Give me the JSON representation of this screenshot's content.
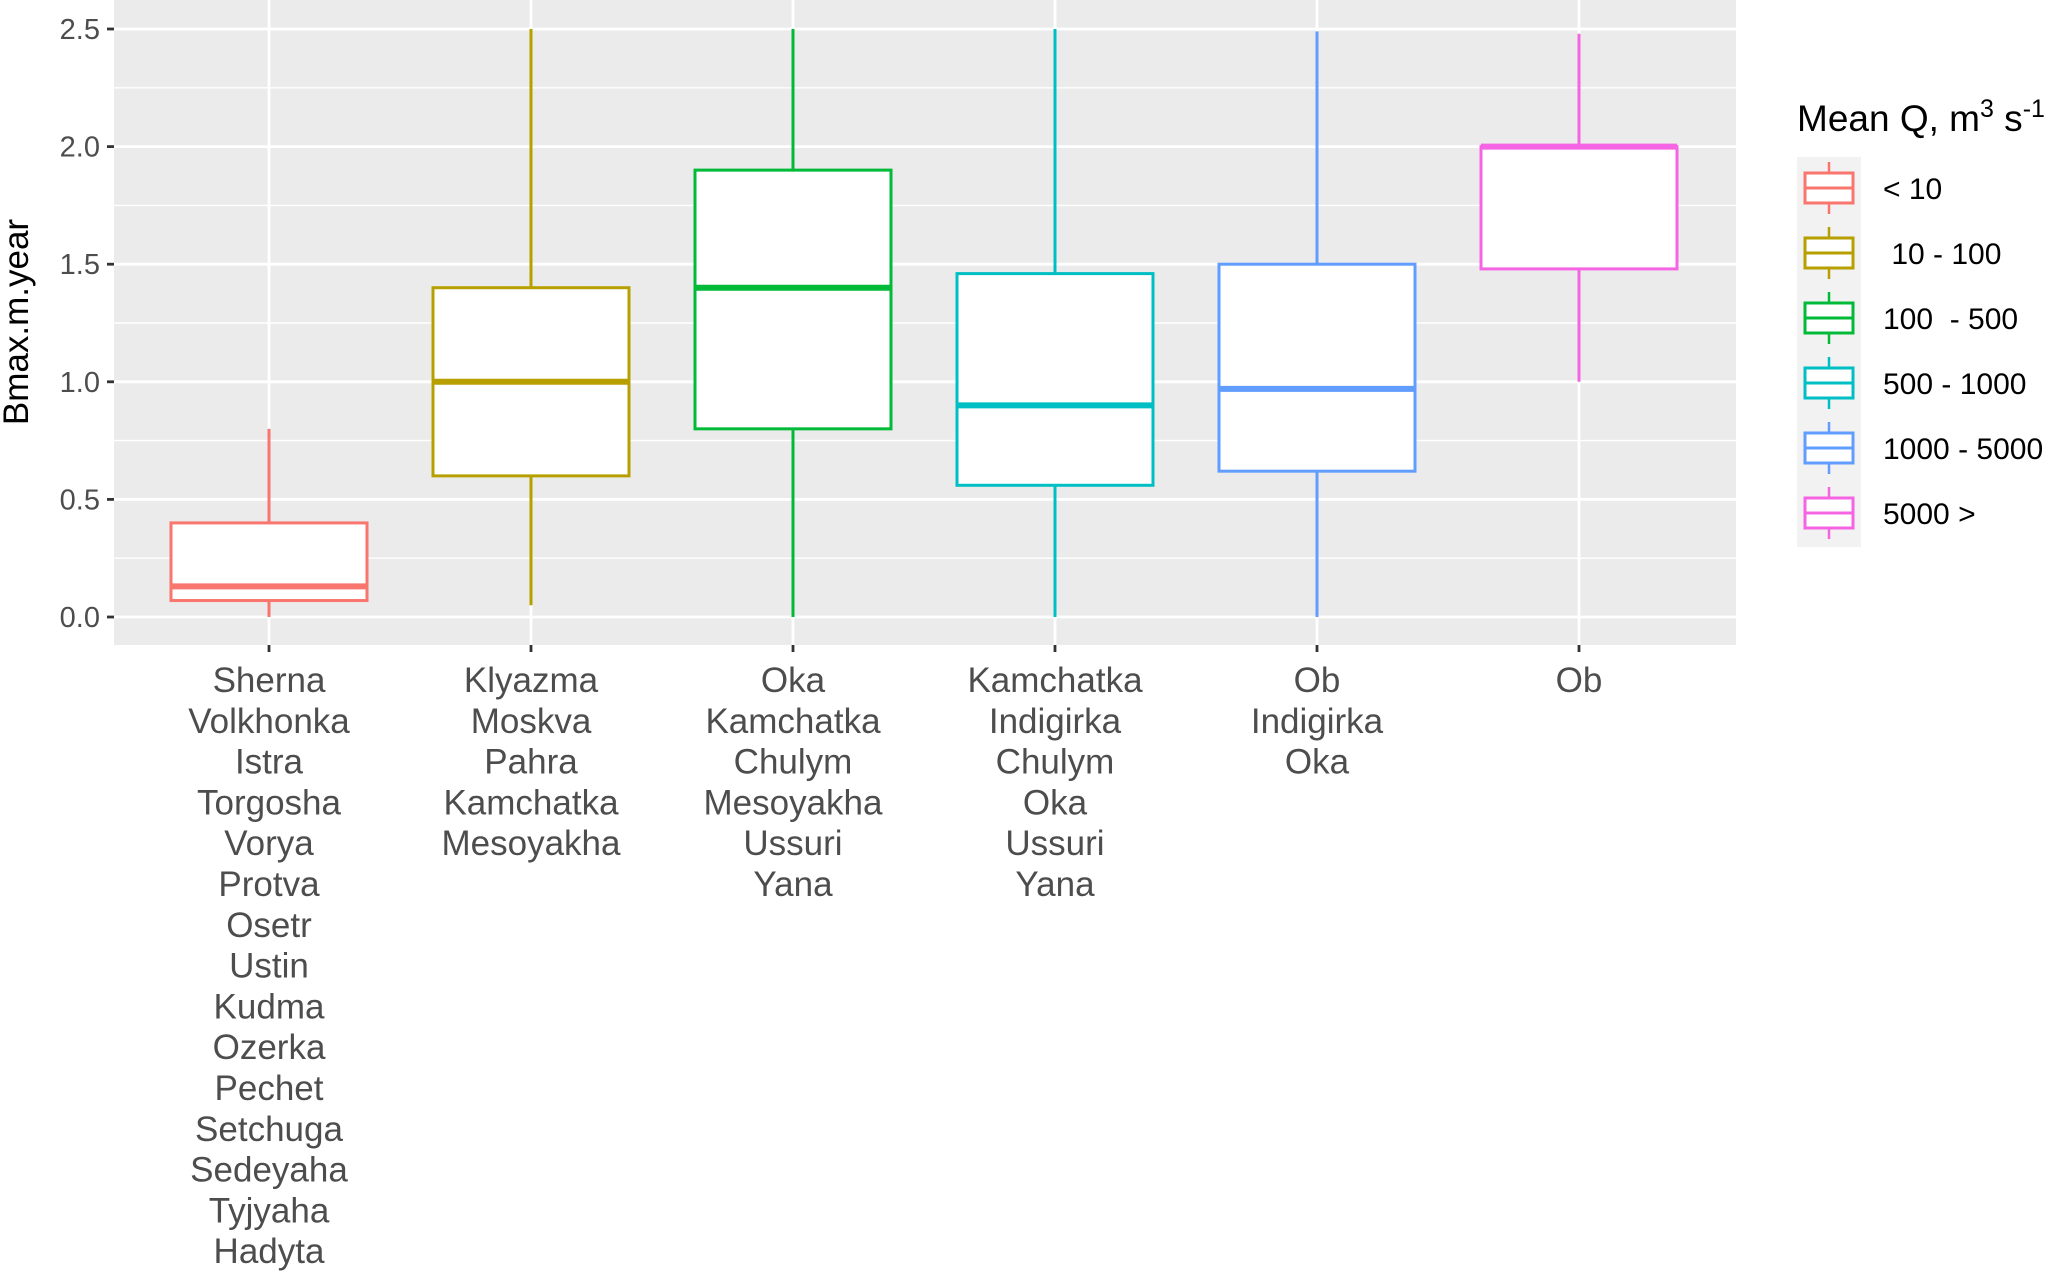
{
  "chart_data": {
    "type": "boxplot",
    "ylabel": "Bmax.m.year",
    "ylim": [
      0,
      2.5
    ],
    "yticks": [
      "0.0",
      "0.5",
      "1.0",
      "1.5",
      "2.0",
      "2.5"
    ],
    "ytick_values": [
      0,
      0.5,
      1.0,
      1.5,
      2.0,
      2.5
    ],
    "grid": true,
    "legend": {
      "title_main": "Mean Q, m",
      "title_sup1": "3",
      "title_mid": " s",
      "title_sup2": "-1",
      "position": "right"
    },
    "series": [
      {
        "name": "< 10",
        "color": "#F8766D",
        "whisker_low": 0.0,
        "q1": 0.07,
        "median": 0.13,
        "q3": 0.4,
        "whisker_high": 0.8,
        "label_lines": [
          "Sherna",
          "Volkhonka",
          "Istra",
          "Torgosha",
          "Vorya",
          "Protva",
          "Osetr",
          "Ustin",
          "Kudma",
          "Ozerka",
          "Pechet",
          "Setchuga",
          "Sedeyaha",
          "Tyjyaha",
          "Hadyta"
        ]
      },
      {
        "name": " 10 - 100",
        "color": "#B79F00",
        "whisker_low": 0.05,
        "q1": 0.6,
        "median": 1.0,
        "q3": 1.4,
        "whisker_high": 2.5,
        "label_lines": [
          "Klyazma",
          "Moskva",
          "Pahra",
          "Kamchatka",
          "Mesoyakha"
        ]
      },
      {
        "name": "100  - 500",
        "color": "#00BA38",
        "whisker_low": 0.0,
        "q1": 0.8,
        "median": 1.4,
        "q3": 1.9,
        "whisker_high": 2.5,
        "label_lines": [
          "Oka",
          "Kamchatka",
          "Chulym",
          "Mesoyakha",
          "Ussuri",
          "Yana"
        ]
      },
      {
        "name": "500 - 1000",
        "color": "#00BFC4",
        "whisker_low": 0.0,
        "q1": 0.56,
        "median": 0.9,
        "q3": 1.46,
        "whisker_high": 2.5,
        "label_lines": [
          "Kamchatka",
          "Indigirka",
          "Chulym",
          "Oka",
          "Ussuri",
          "Yana"
        ]
      },
      {
        "name": "1000 - 5000",
        "color": "#619CFF",
        "whisker_low": 0.0,
        "q1": 0.62,
        "median": 0.97,
        "q3": 1.5,
        "whisker_high": 2.49,
        "label_lines": [
          "Ob",
          "Indigirka",
          "Oka"
        ]
      },
      {
        "name": "5000 >",
        "color": "#F564E3",
        "whisker_low": 1.0,
        "q1": 1.48,
        "median": 2.0,
        "q3": 2.0,
        "whisker_high": 2.48,
        "label_lines": [
          "Ob"
        ]
      }
    ]
  }
}
